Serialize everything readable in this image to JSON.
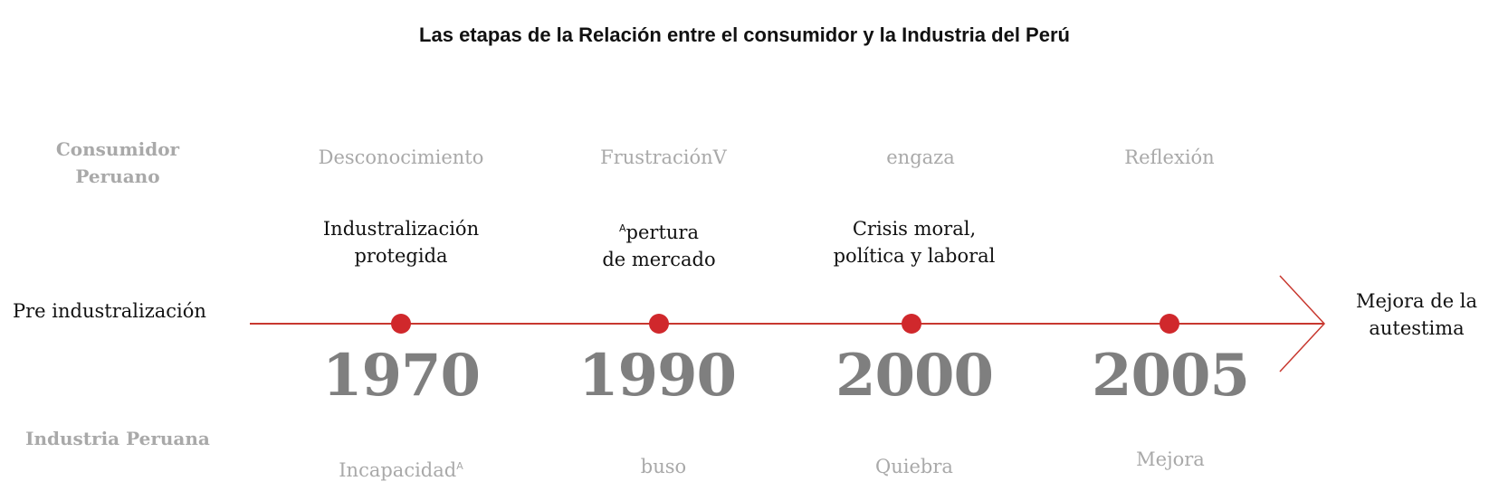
{
  "title": "Las etapas de la Relación entre el consumidor y la Industria del Perú",
  "rows": {
    "consumer_line1": "Consumidor",
    "consumer_line2": "Peruano",
    "industry": "Industria Peruana"
  },
  "start_label": "Pre industralización",
  "end_label": {
    "line1": "Mejora de la",
    "line2": "autestima"
  },
  "colors": {
    "timeline": "#c8382f",
    "dot": "#d0282c",
    "year": "#7f7f7f",
    "muted": "#a9a9a9"
  },
  "milestones": [
    {
      "year": "1970",
      "consumer": "Desconocimiento",
      "event_line1": "Industralización",
      "event_line2": "protegida",
      "industry": "Incapacidad",
      "industry_mark": "A"
    },
    {
      "year": "1990",
      "consumer": "FrustraciónV",
      "event_mark": "A",
      "event_line1": "pertura",
      "event_line2": "de mercado",
      "industry": "buso"
    },
    {
      "year": "2000",
      "consumer": "engaza",
      "event_line1": "Crisis moral,",
      "event_line2": "política y laboral",
      "industry": "Quiebra"
    },
    {
      "year": "2005",
      "consumer": "Reflexión",
      "event_line1": "",
      "event_line2": "",
      "industry": "Mejora"
    }
  ]
}
